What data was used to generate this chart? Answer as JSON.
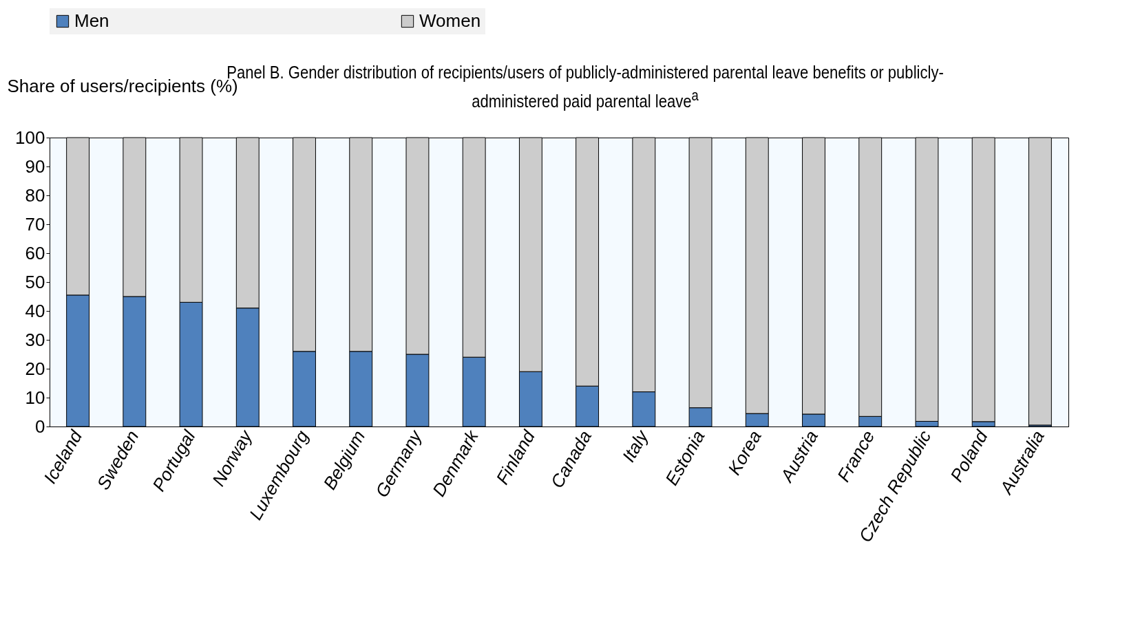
{
  "chart_data": {
    "type": "bar",
    "stacked": true,
    "title": "Panel B. Gender distribution of recipients/users of publicly-administered parental leave benefits or publicly-administered paid parental leave$^{a}$",
    "ylabel": "Share of users/recipients (%)",
    "categories": [
      "Iceland",
      "Sweden",
      "Portugal",
      "Norway",
      "Luxembourg",
      "Belgium",
      "Germany",
      "Denmark",
      "Finland",
      "Canada",
      "Italy",
      "Estonia",
      "Korea",
      "Austria",
      "France",
      "Czech Republic",
      "Poland",
      "Australia"
    ],
    "series": [
      {
        "name": "Men",
        "color": "#4f81bd",
        "values": [
          45.5,
          45,
          43,
          41,
          26,
          26,
          25,
          24,
          19,
          14,
          12,
          6.5,
          4.5,
          4.3,
          3.5,
          1.8,
          1.7,
          0.5
        ]
      },
      {
        "name": "Women",
        "color": "#cccccc",
        "values": [
          54.5,
          55,
          57,
          59,
          74,
          74,
          75,
          76,
          81,
          86,
          88,
          93.5,
          95.5,
          95.7,
          96.5,
          98.2,
          98.3,
          99.5
        ]
      }
    ],
    "ylim": [
      0,
      100
    ],
    "yticks": [
      0,
      10,
      20,
      30,
      40,
      50,
      60,
      70,
      80,
      90,
      100
    ],
    "grid": false,
    "legend": "top"
  }
}
